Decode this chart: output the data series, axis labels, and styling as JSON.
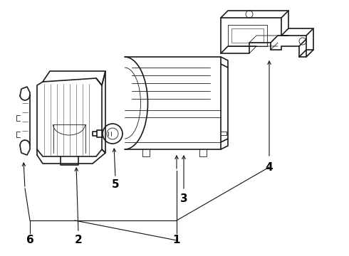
{
  "bg_color": "#ffffff",
  "line_color": "#1a1a1a",
  "label_color": "#000000",
  "fig_width": 4.9,
  "fig_height": 3.6,
  "dpi": 100,
  "arrow_color": "#111111"
}
